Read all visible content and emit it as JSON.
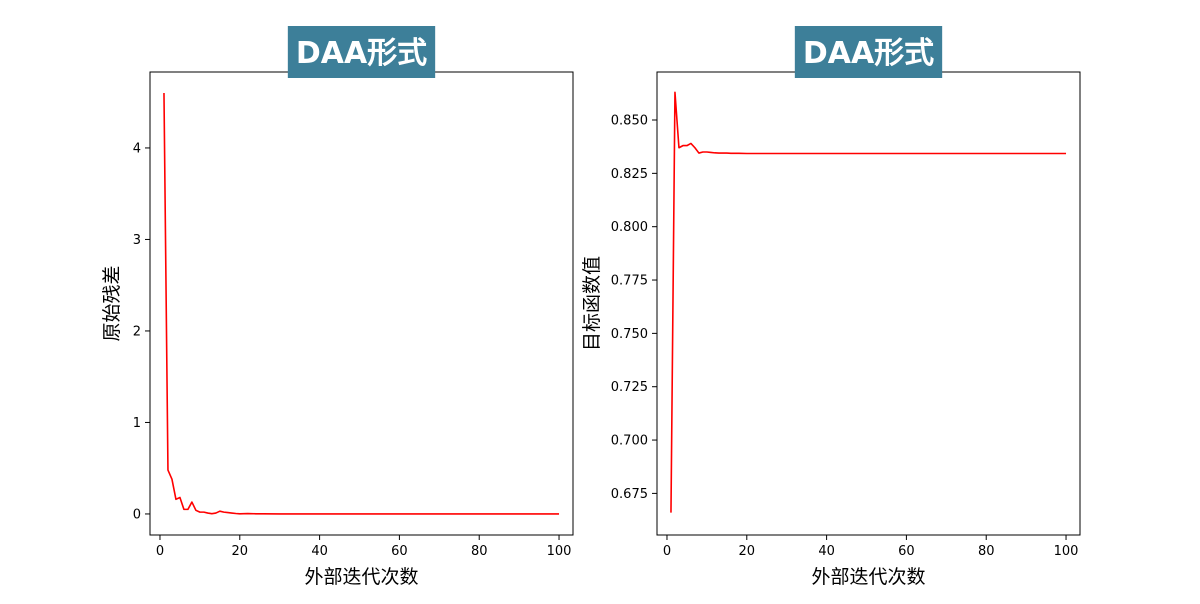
{
  "chart_data": [
    {
      "type": "line",
      "title": "DAA形式",
      "xlabel": "外部迭代次数",
      "ylabel": "原始残差",
      "xlim": [
        -2.5,
        103.5
      ],
      "ylim": [
        -0.23,
        4.83
      ],
      "xticks": [
        0,
        20,
        40,
        60,
        80,
        100
      ],
      "yticks": [
        0,
        1,
        2,
        3,
        4
      ],
      "ytick_labels": [
        "0",
        "1",
        "2",
        "3",
        "4"
      ],
      "grid": false,
      "title_bg": "#3d7f99",
      "series": [
        {
          "color": "#ff0000",
          "x": [
            1,
            2,
            3,
            4,
            5,
            6,
            7,
            8,
            9,
            10,
            11,
            12,
            13,
            14,
            15,
            16,
            17,
            18,
            19,
            20,
            22,
            24,
            26,
            30,
            40,
            50,
            60,
            70,
            80,
            90,
            100
          ],
          "y": [
            4.6,
            0.48,
            0.38,
            0.16,
            0.18,
            0.05,
            0.05,
            0.13,
            0.04,
            0.02,
            0.02,
            0.01,
            0.003,
            0.01,
            0.03,
            0.02,
            0.015,
            0.01,
            0.005,
            0.002,
            0.004,
            0.002,
            0.001,
            0.0005,
            0.0002,
            0.0001,
            0.0001,
            0.0001,
            0.0001,
            0.0001,
            0.0001
          ]
        }
      ]
    },
    {
      "type": "line",
      "title": "DAA形式",
      "xlabel": "外部迭代次数",
      "ylabel": "目标函数值",
      "xlim": [
        -2.5,
        103.5
      ],
      "ylim": [
        0.6555,
        0.8725
      ],
      "xticks": [
        0,
        20,
        40,
        60,
        80,
        100
      ],
      "yticks": [
        0.675,
        0.7,
        0.725,
        0.75,
        0.775,
        0.8,
        0.825,
        0.85
      ],
      "ytick_labels": [
        "0.675",
        "0.700",
        "0.725",
        "0.750",
        "0.775",
        "0.800",
        "0.825",
        "0.850"
      ],
      "grid": false,
      "title_bg": "#3d7f99",
      "series": [
        {
          "color": "#ff0000",
          "x": [
            1,
            2,
            3,
            4,
            5,
            6,
            7,
            8,
            9,
            10,
            11,
            12,
            13,
            14,
            15,
            16,
            18,
            20,
            25,
            30,
            40,
            50,
            60,
            70,
            80,
            90,
            100
          ],
          "y": [
            0.666,
            0.863,
            0.837,
            0.838,
            0.838,
            0.839,
            0.837,
            0.8345,
            0.835,
            0.835,
            0.8348,
            0.8346,
            0.8345,
            0.8345,
            0.8345,
            0.8344,
            0.8344,
            0.8343,
            0.8343,
            0.8343,
            0.8343,
            0.8343,
            0.8343,
            0.8343,
            0.8343,
            0.8343,
            0.8343
          ]
        }
      ]
    }
  ]
}
